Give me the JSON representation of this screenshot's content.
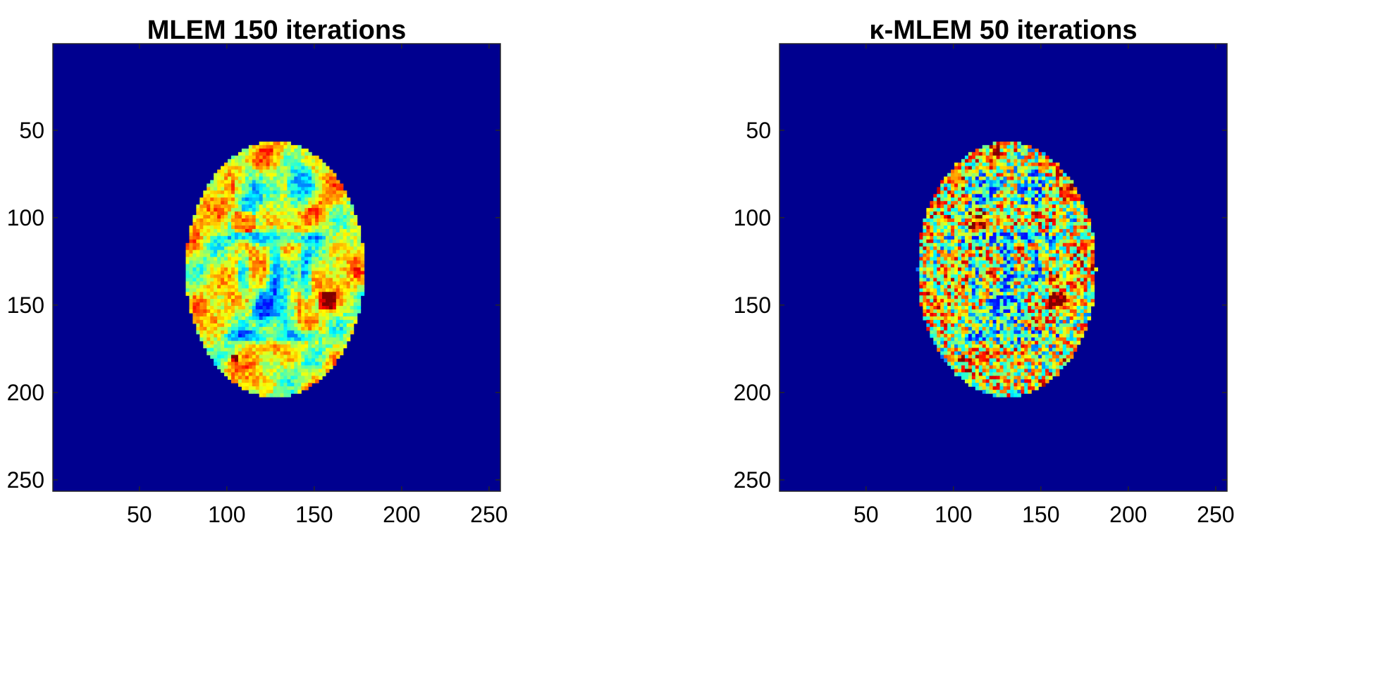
{
  "chart_data": [
    {
      "type": "heatmap",
      "title": "MLEM 150 iterations",
      "colormap": "jet",
      "image_size": [
        256,
        256
      ],
      "xlim": [
        0.5,
        256.5
      ],
      "ylim": [
        0.5,
        256.5
      ],
      "y_axis_reversed": true,
      "xticks": [
        50,
        100,
        150,
        200,
        250
      ],
      "yticks": [
        50,
        100,
        150,
        200,
        250
      ],
      "xticklabels": [
        "50",
        "100",
        "150",
        "200",
        "250"
      ],
      "yticklabels": [
        "50",
        "100",
        "150",
        "200",
        "250"
      ],
      "background_color": "#00008f",
      "brain_ellipse": {
        "center": [
          128,
          130
        ],
        "radius": [
          51,
          73
        ]
      },
      "hot_lesions": [
        {
          "x": 110,
          "y": 103,
          "r": 7
        },
        {
          "x": 158,
          "y": 148,
          "r": 6
        },
        {
          "x": 105,
          "y": 181,
          "r": 3
        }
      ]
    },
    {
      "type": "heatmap",
      "title": "κ-MLEM 50 iterations",
      "colormap": "jet",
      "image_size": [
        256,
        256
      ],
      "xlim": [
        0.5,
        256.5
      ],
      "ylim": [
        0.5,
        256.5
      ],
      "y_axis_reversed": true,
      "xticks": [
        50,
        100,
        150,
        200,
        250
      ],
      "yticks": [
        50,
        100,
        150,
        200,
        250
      ],
      "xticklabels": [
        "50",
        "100",
        "150",
        "200",
        "250"
      ],
      "yticklabels": [
        "50",
        "100",
        "150",
        "200",
        "250"
      ],
      "background_color": "#00008f",
      "brain_ellipse": {
        "center": [
          131,
          130
        ],
        "radius": [
          51,
          73
        ]
      },
      "hot_lesions": [
        {
          "x": 113,
          "y": 102,
          "r": 7
        },
        {
          "x": 160,
          "y": 148,
          "r": 6
        },
        {
          "x": 105,
          "y": 181,
          "r": 3
        }
      ]
    }
  ]
}
